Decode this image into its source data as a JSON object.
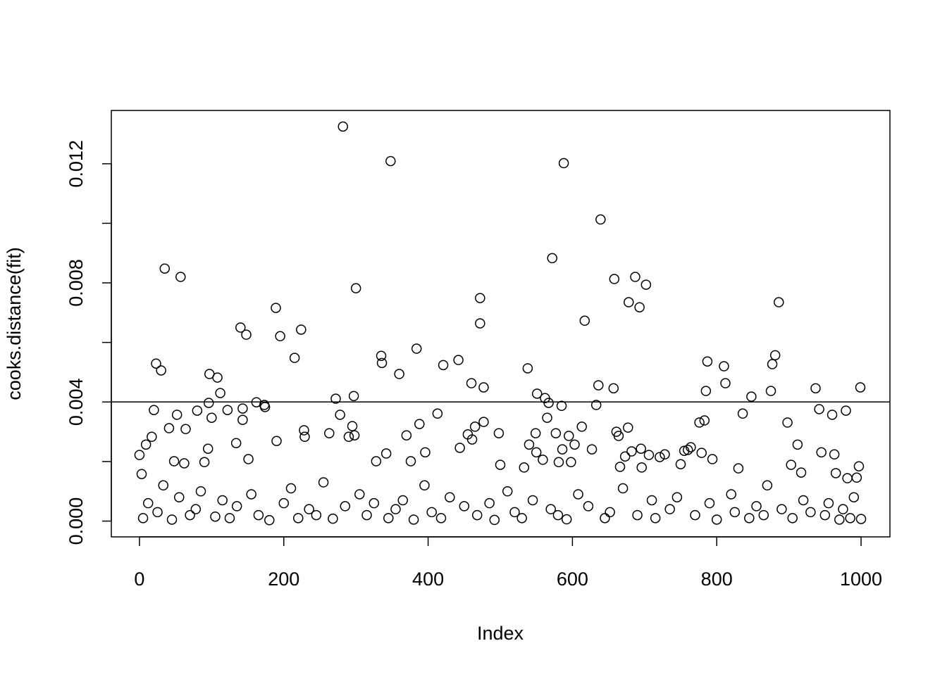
{
  "chart_data": {
    "type": "scatter",
    "xlabel": "Index",
    "ylabel": "cooks.distance(fit)",
    "x": [
      0,
      3,
      9,
      17,
      20,
      23,
      30,
      35,
      41,
      48,
      52,
      57,
      62,
      64,
      80,
      90,
      95,
      96,
      97,
      100,
      108,
      112,
      122,
      134,
      140,
      143,
      143,
      148,
      151,
      162,
      173,
      174,
      189,
      190,
      195,
      215,
      224,
      228,
      229,
      263,
      272,
      278,
      282,
      290,
      295,
      297,
      298,
      300,
      328,
      335,
      336,
      342,
      348,
      360,
      370,
      376,
      384,
      388,
      396,
      413,
      421,
      442,
      444,
      455,
      460,
      461,
      465,
      472,
      472,
      477,
      477,
      498,
      500,
      533,
      538,
      540,
      549,
      550,
      551,
      559,
      562,
      565,
      567,
      572,
      577,
      581,
      585,
      586,
      588,
      595,
      598,
      603,
      613,
      617,
      627,
      633,
      636,
      639,
      657,
      658,
      661,
      664,
      666,
      673,
      677,
      678,
      682,
      687,
      693,
      695,
      696,
      702,
      706,
      721,
      728,
      750,
      755,
      760,
      764,
      776,
      779,
      783,
      785,
      787,
      794,
      810,
      812,
      830,
      836,
      848,
      875,
      877,
      881,
      886,
      898,
      903,
      912,
      917,
      937,
      942,
      945,
      960,
      963,
      965,
      979,
      981,
      994,
      997,
      999,
      1000,
      5,
      12,
      25,
      33,
      45,
      55,
      70,
      78,
      85,
      105,
      115,
      125,
      135,
      155,
      165,
      180,
      200,
      210,
      220,
      235,
      245,
      255,
      268,
      285,
      305,
      315,
      325,
      345,
      355,
      365,
      380,
      395,
      405,
      418,
      430,
      450,
      468,
      485,
      492,
      510,
      520,
      530,
      545,
      570,
      580,
      592,
      608,
      622,
      645,
      652,
      670,
      690,
      710,
      715,
      735,
      745,
      770,
      790,
      800,
      820,
      825,
      845,
      855,
      865,
      870,
      890,
      905,
      920,
      930,
      950,
      955,
      970,
      975,
      985,
      990
    ],
    "values": [
      0.00222,
      0.00158,
      0.00257,
      0.00283,
      0.00373,
      0.00529,
      0.00506,
      0.00848,
      0.00312,
      0.00201,
      0.00357,
      0.0082,
      0.00194,
      0.00309,
      0.00371,
      0.00198,
      0.00243,
      0.00397,
      0.00494,
      0.00347,
      0.00482,
      0.0043,
      0.00373,
      0.00262,
      0.0065,
      0.00378,
      0.0034,
      0.00626,
      0.00208,
      0.00399,
      0.0039,
      0.00383,
      0.00716,
      0.00269,
      0.00621,
      0.00548,
      0.00643,
      0.00305,
      0.00283,
      0.00295,
      0.00411,
      0.00357,
      0.01325,
      0.00283,
      0.00319,
      0.0042,
      0.00288,
      0.00782,
      0.00201,
      0.00555,
      0.00531,
      0.00227,
      0.01209,
      0.00494,
      0.00288,
      0.00201,
      0.00579,
      0.00326,
      0.00231,
      0.00361,
      0.00524,
      0.00541,
      0.00246,
      0.00291,
      0.00463,
      0.00274,
      0.00317,
      0.00749,
      0.00664,
      0.00449,
      0.00333,
      0.00295,
      0.00189,
      0.0018,
      0.00513,
      0.00257,
      0.00295,
      0.00231,
      0.00428,
      0.00206,
      0.00413,
      0.00347,
      0.00397,
      0.00883,
      0.00295,
      0.00198,
      0.00387,
      0.00241,
      0.01202,
      0.00286,
      0.00198,
      0.00257,
      0.00317,
      0.00673,
      0.00241,
      0.0039,
      0.00456,
      0.01013,
      0.00446,
      0.00813,
      0.003,
      0.00286,
      0.00182,
      0.00217,
      0.00314,
      0.00735,
      0.00234,
      0.0082,
      0.00718,
      0.00243,
      0.0018,
      0.00794,
      0.00222,
      0.00215,
      0.00224,
      0.00191,
      0.00236,
      0.00239,
      0.00248,
      0.00331,
      0.00229,
      0.00338,
      0.00437,
      0.00536,
      0.00208,
      0.0052,
      0.00463,
      0.00177,
      0.00361,
      0.00418,
      0.00437,
      0.00527,
      0.00557,
      0.00735,
      0.00331,
      0.00189,
      0.00257,
      0.00163,
      0.00446,
      0.00376,
      0.00231,
      0.00357,
      0.00224,
      0.00161,
      0.00371,
      0.00144,
      0.00146,
      0.00184,
      0.00449,
      7e-05,
      0.0001,
      0.0006,
      0.0003,
      0.0012,
      5e-05,
      0.0008,
      0.0002,
      0.0004,
      0.001,
      0.00015,
      0.0007,
      0.0001,
      0.0005,
      0.0009,
      0.0002,
      3e-05,
      0.0006,
      0.0011,
      0.0001,
      0.0004,
      0.0002,
      0.0013,
      8e-05,
      0.0005,
      0.0009,
      0.0002,
      0.0006,
      0.0001,
      0.0004,
      0.0007,
      5e-05,
      0.0012,
      0.0003,
      0.0001,
      0.0008,
      0.0005,
      0.0002,
      0.0006,
      4e-05,
      0.001,
      0.0003,
      0.0001,
      0.0007,
      0.0004,
      0.0002,
      6e-05,
      0.0009,
      0.0005,
      0.0001,
      0.0003,
      0.0011,
      0.0002,
      0.0007,
      0.0001,
      0.0004,
      0.0008,
      0.0002,
      0.0006,
      5e-05,
      0.0009,
      0.0003,
      0.0001,
      0.0005,
      0.0002,
      0.0012,
      0.0004,
      0.0001,
      0.0007,
      0.0003,
      0.0002,
      0.0006,
      5e-05,
      0.0004,
      0.0001,
      0.0008
    ],
    "xlim": [
      -39,
      1040
    ],
    "ylim": [
      -0.00053,
      0.01379
    ],
    "xticks": [
      0,
      200,
      400,
      600,
      800,
      1000
    ],
    "yticks": [
      {
        "value": 0,
        "label": "0.000"
      },
      {
        "value": 0.002,
        "label": null
      },
      0.004,
      {
        "value": 0.006,
        "label": null
      },
      0.008,
      {
        "value": 0.01,
        "label": null
      },
      0.012
    ],
    "hline": 0.004,
    "color": "#000000"
  }
}
